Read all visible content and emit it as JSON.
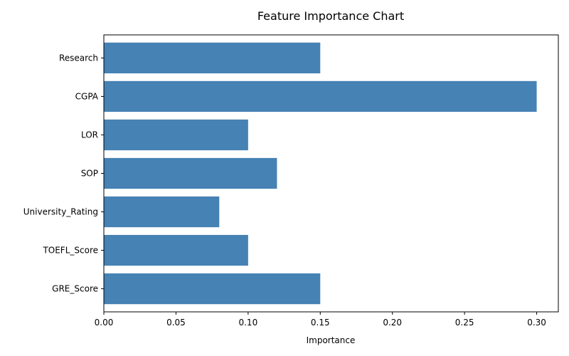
{
  "chart_data": {
    "type": "bar",
    "orientation": "horizontal",
    "title": "Feature Importance Chart",
    "xlabel": "Importance",
    "ylabel": "",
    "categories": [
      "GRE_Score",
      "TOEFL_Score",
      "University_Rating",
      "SOP",
      "LOR",
      "CGPA",
      "Research"
    ],
    "values": [
      0.15,
      0.1,
      0.08,
      0.12,
      0.1,
      0.3,
      0.15
    ],
    "xlim": [
      0.0,
      0.315
    ],
    "xticks": [
      "0.00",
      "0.05",
      "0.10",
      "0.15",
      "0.20",
      "0.25",
      "0.30"
    ],
    "grid": false,
    "legend": "none",
    "bar_color": "#4682B4"
  }
}
